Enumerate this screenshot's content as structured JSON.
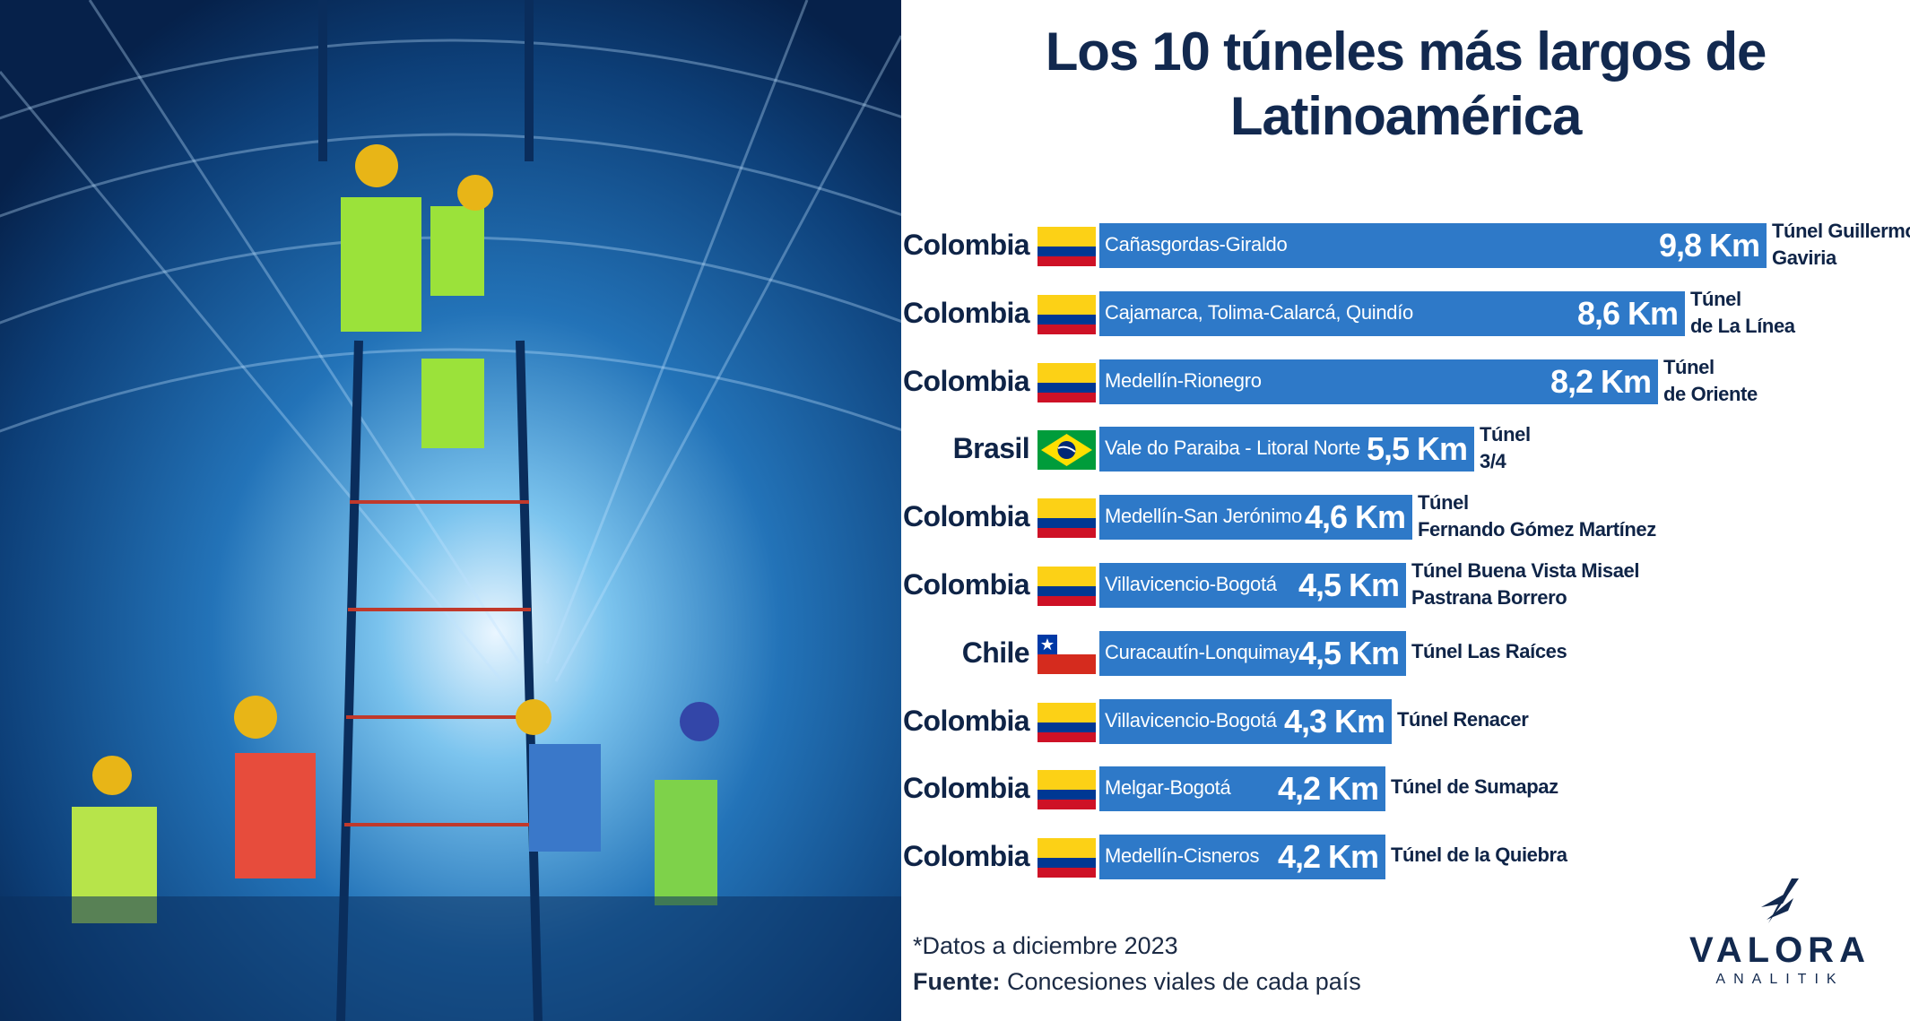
{
  "title": {
    "line1": "Los 10 túneles más largos de",
    "line2": "Latinoamérica"
  },
  "colors": {
    "bar": "#2e79c8",
    "text": "#12294f"
  },
  "chart_data": {
    "type": "bar",
    "orientation": "horizontal",
    "title": "Los 10 túneles más largos de Latinoamérica",
    "unit": "Km",
    "rows": [
      {
        "country": "Colombia",
        "flag": "colombia",
        "route": "Cañasgordas-Giraldo",
        "value": 9.8,
        "label": "9,8 Km",
        "tunnel": [
          "Túnel Guillermo",
          "Gaviria"
        ]
      },
      {
        "country": "Colombia",
        "flag": "colombia",
        "route": "Cajamarca, Tolima-Calarcá, Quindío",
        "value": 8.6,
        "label": "8,6 Km",
        "tunnel": [
          "Túnel",
          "de La Línea"
        ]
      },
      {
        "country": "Colombia",
        "flag": "colombia",
        "route": "Medellín-Rionegro",
        "value": 8.2,
        "label": "8,2 Km",
        "tunnel": [
          "Túnel",
          "de Oriente"
        ]
      },
      {
        "country": "Brasil",
        "flag": "brasil",
        "route": "Vale do Paraiba - Litoral Norte",
        "value": 5.5,
        "label": "5,5 Km",
        "tunnel": [
          "Túnel",
          "3/4"
        ]
      },
      {
        "country": "Colombia",
        "flag": "colombia",
        "route": "Medellín-San Jerónimo",
        "value": 4.6,
        "label": "4,6 Km",
        "tunnel": [
          "Túnel",
          "Fernando Gómez Martínez"
        ]
      },
      {
        "country": "Colombia",
        "flag": "colombia",
        "route": "Villavicencio-Bogotá",
        "value": 4.5,
        "label": "4,5 Km",
        "tunnel": [
          "Túnel Buena Vista Misael",
          "Pastrana Borrero"
        ]
      },
      {
        "country": "Chile",
        "flag": "chile",
        "route": "Curacautín-Lonquimay",
        "value": 4.5,
        "label": "4,5 Km",
        "tunnel": [
          "Túnel Las Raíces"
        ]
      },
      {
        "country": "Colombia",
        "flag": "colombia",
        "route": "Villavicencio-Bogotá",
        "value": 4.3,
        "label": "4,3 Km",
        "tunnel": [
          "Túnel Renacer"
        ]
      },
      {
        "country": "Colombia",
        "flag": "colombia",
        "route": "Melgar-Bogotá",
        "value": 4.2,
        "label": "4,2 Km",
        "tunnel": [
          "Túnel de Sumapaz"
        ]
      },
      {
        "country": "Colombia",
        "flag": "colombia",
        "route": "Medellín-Cisneros",
        "value": 4.2,
        "label": "4,2 Km",
        "tunnel": [
          "Túnel de la Quiebra"
        ]
      }
    ]
  },
  "footnote": "*Datos a diciembre 2023",
  "source": {
    "label": "Fuente:",
    "text": " Concesiones viales de cada país"
  },
  "logo": {
    "word": "VALORA",
    "sub": "ANALITIK"
  }
}
